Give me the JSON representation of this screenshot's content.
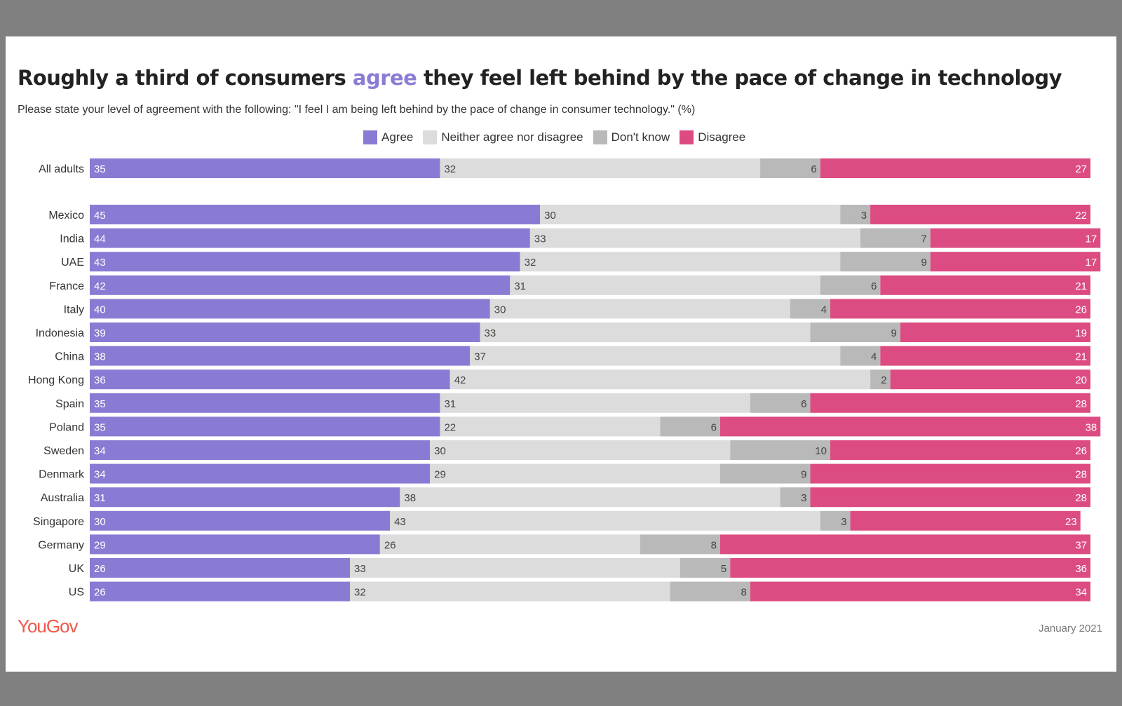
{
  "title_parts": [
    "Roughly a third of consumers ",
    "agree",
    " they feel left behind by the pace of change in technology"
  ],
  "subtitle": "Please state your level of agreement with the following: \"I feel I am being left behind by the pace of change in consumer technology.\" (%)",
  "footer": {
    "logo": "YouGov",
    "date": "January 2021"
  },
  "chart_data": {
    "type": "bar",
    "orientation": "horizontal-stacked",
    "legend_position": "top",
    "grid": false,
    "categories": [
      "All adults",
      "Mexico",
      "India",
      "UAE",
      "France",
      "Italy",
      "Indonesia",
      "China",
      "Hong Kong",
      "Spain",
      "Poland",
      "Sweden",
      "Denmark",
      "Australia",
      "Singapore",
      "Germany",
      "UK",
      "US"
    ],
    "series": [
      {
        "name": "Agree",
        "color": "#897bd4",
        "values": [
          35,
          45,
          44,
          43,
          42,
          40,
          39,
          38,
          36,
          35,
          35,
          34,
          34,
          31,
          30,
          29,
          26,
          26
        ]
      },
      {
        "name": "Neither agree nor disagree",
        "color": "#dcdcdc",
        "values": [
          32,
          30,
          33,
          32,
          31,
          30,
          33,
          37,
          42,
          31,
          22,
          30,
          29,
          38,
          43,
          26,
          33,
          32
        ]
      },
      {
        "name": "Don't know",
        "color": "#b9b9b9",
        "values": [
          6,
          3,
          7,
          9,
          6,
          4,
          9,
          4,
          2,
          6,
          6,
          10,
          9,
          3,
          3,
          8,
          5,
          8
        ]
      },
      {
        "name": "Disagree",
        "color": "#dc4c82",
        "values": [
          27,
          22,
          17,
          17,
          21,
          26,
          19,
          21,
          20,
          28,
          38,
          26,
          28,
          28,
          23,
          37,
          36,
          34
        ]
      }
    ]
  }
}
